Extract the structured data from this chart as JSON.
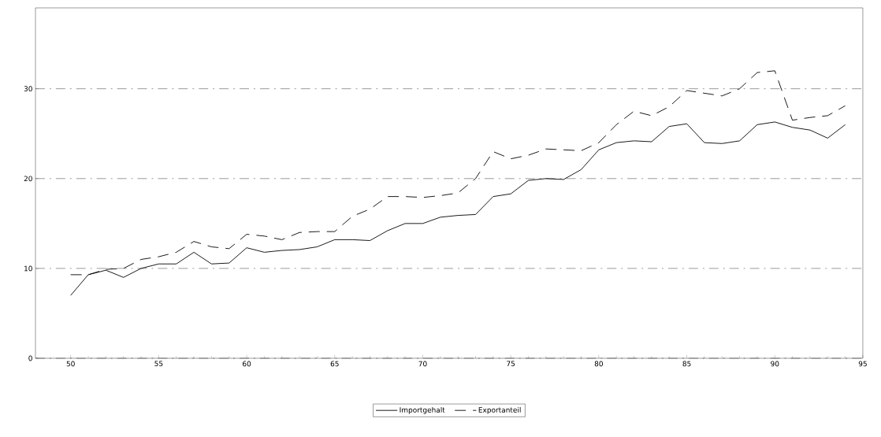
{
  "chart_data": {
    "type": "line",
    "x": [
      50,
      51,
      52,
      53,
      54,
      55,
      56,
      57,
      58,
      59,
      60,
      61,
      62,
      63,
      64,
      65,
      66,
      67,
      68,
      69,
      70,
      71,
      72,
      73,
      74,
      75,
      76,
      77,
      78,
      79,
      80,
      81,
      82,
      83,
      84,
      85,
      86,
      87,
      88,
      89,
      90,
      91,
      92,
      93,
      94
    ],
    "series": [
      {
        "name": "Importgehalt",
        "color": "#000000",
        "line_style": "solid",
        "values": [
          7,
          9.3,
          9.8,
          9.0,
          10.0,
          10.5,
          10.5,
          11.8,
          10.5,
          10.6,
          12.3,
          11.8,
          12.0,
          12.1,
          12.4,
          13.2,
          13.2,
          13.1,
          14.2,
          15.0,
          15.0,
          15.7,
          15.9,
          16.0,
          18.0,
          18.3,
          19.8,
          20.0,
          19.9,
          21.0,
          23.2,
          24.0,
          24.2,
          24.1,
          25.8,
          26.1,
          24.0,
          23.9,
          24.2,
          26.0,
          26.3,
          25.7,
          25.4,
          24.5,
          26.0
        ]
      },
      {
        "name": "Exportanteil",
        "color": "#000000",
        "line_style": "dashed",
        "values": [
          9.3,
          9.3,
          9.9,
          10.0,
          11.0,
          11.3,
          11.8,
          13.0,
          12.4,
          12.2,
          13.8,
          13.6,
          13.2,
          14.0,
          14.1,
          14.1,
          15.8,
          16.6,
          18.0,
          18.0,
          17.9,
          18.1,
          18.4,
          20.0,
          23.0,
          22.2,
          22.6,
          23.3,
          23.2,
          23.1,
          24.0,
          26.0,
          27.5,
          27.0,
          28.0,
          29.8,
          29.5,
          29.2,
          30.0,
          31.8,
          32.0,
          26.5,
          26.8,
          27.0,
          28.1
        ]
      }
    ],
    "xlim": [
      48,
      95
    ],
    "xticks": [
      50,
      55,
      60,
      65,
      70,
      75,
      80,
      85,
      90,
      95
    ],
    "ylim": [
      0,
      39
    ],
    "yticks": [
      0,
      10,
      20,
      30
    ],
    "grid": "y",
    "legend": "bottom",
    "marker": "none"
  }
}
